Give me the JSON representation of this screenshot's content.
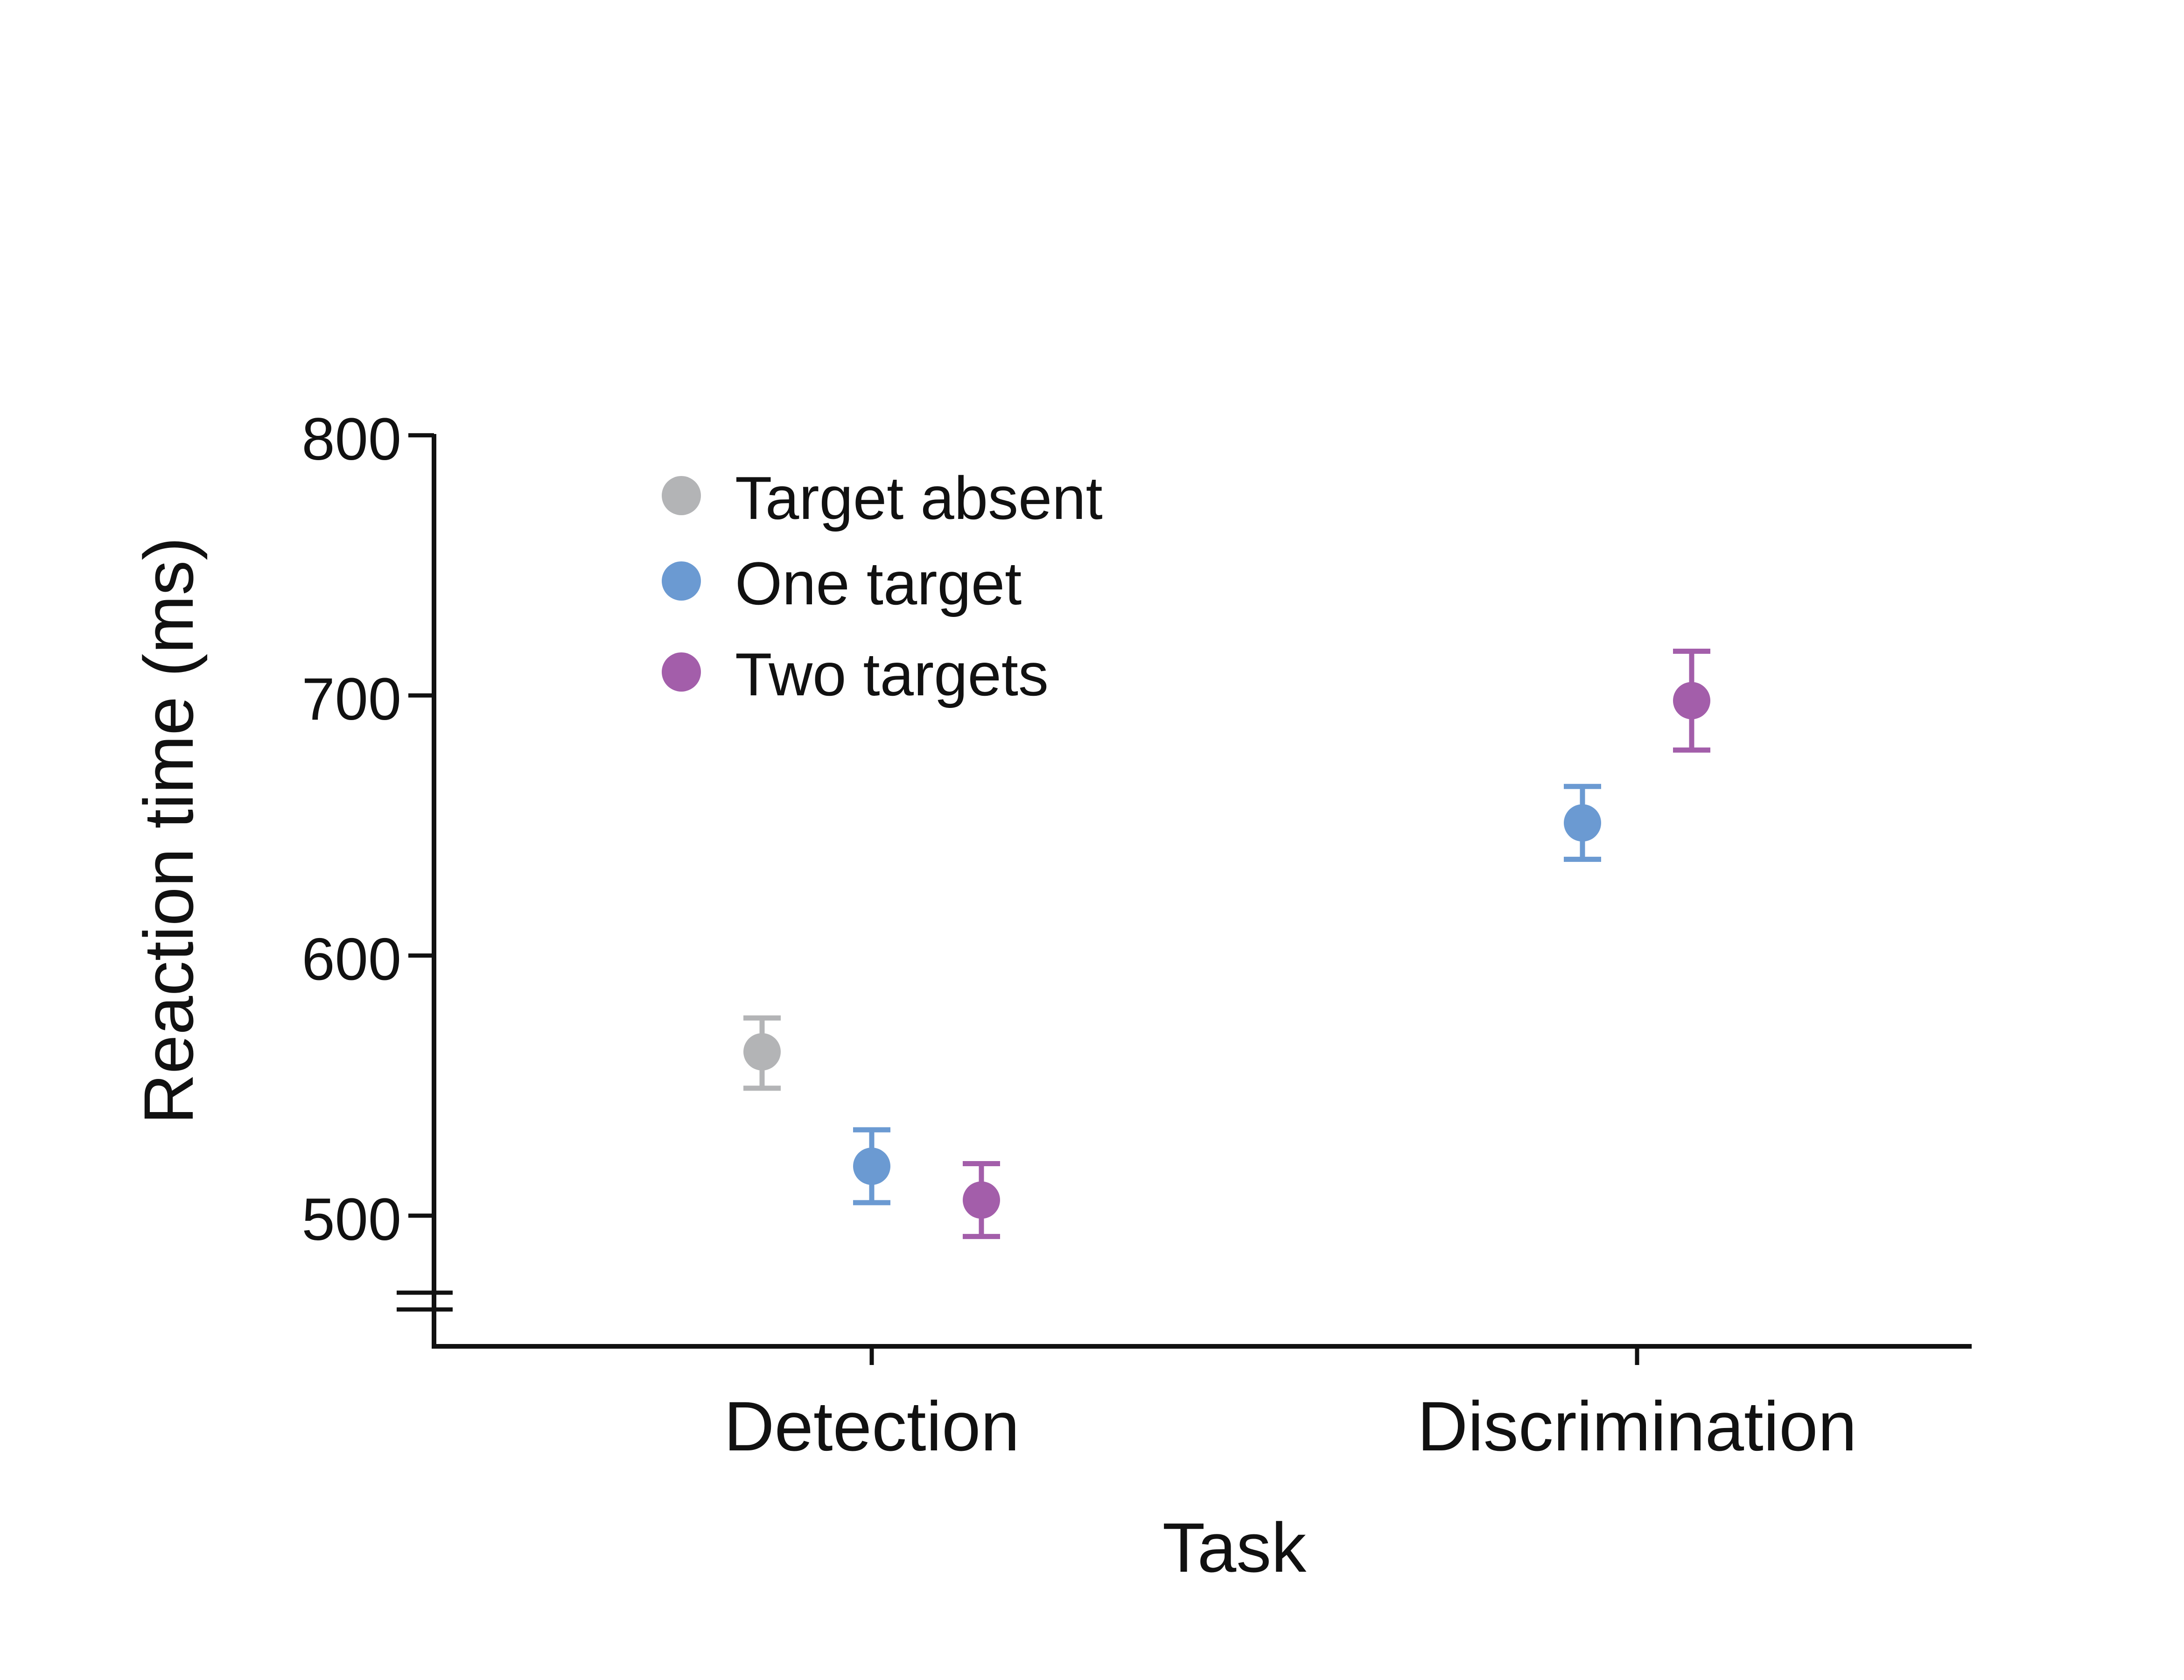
{
  "chart_data": {
    "type": "scatter",
    "title": "",
    "xlabel": "Task",
    "ylabel": "Reaction time (ms)",
    "categories": [
      "Detection",
      "Discrimination"
    ],
    "ylim": [
      450,
      800
    ],
    "yticks": [
      500,
      600,
      700,
      800
    ],
    "axis_break": true,
    "grid": false,
    "legend_position": "top-left",
    "series": [
      {
        "name": "Target absent",
        "color": "#B3B4B6",
        "points": [
          {
            "category": "Detection",
            "y": 563,
            "err_low": 549,
            "err_high": 576
          }
        ]
      },
      {
        "name": "One target",
        "color": "#6B9AD2",
        "points": [
          {
            "category": "Detection",
            "y": 519,
            "err_low": 505,
            "err_high": 533
          },
          {
            "category": "Discrimination",
            "y": 651,
            "err_low": 637,
            "err_high": 665
          }
        ]
      },
      {
        "name": "Two targets",
        "color": "#A35EAA",
        "points": [
          {
            "category": "Detection",
            "y": 506,
            "err_low": 492,
            "err_high": 520
          },
          {
            "category": "Discrimination",
            "y": 698,
            "err_low": 679,
            "err_high": 717
          }
        ]
      }
    ]
  }
}
